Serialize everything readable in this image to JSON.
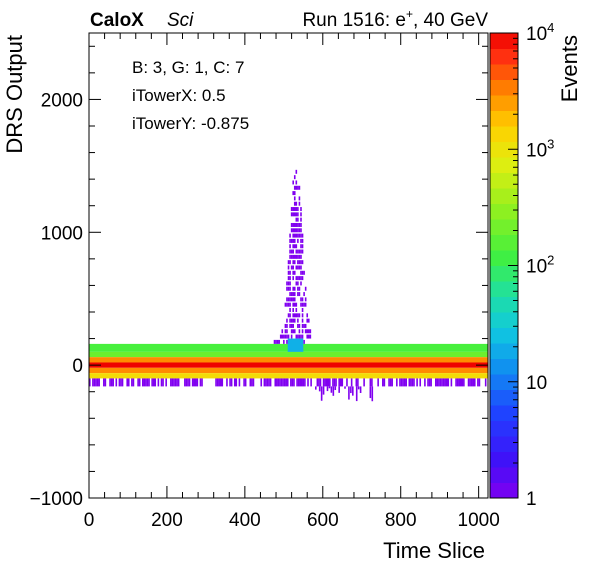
{
  "header": {
    "experiment": "CaloX",
    "detector": "Sci",
    "run_prefix": "Run 1516: e",
    "run_sup": "+",
    "run_suffix": ", 40 GeV"
  },
  "info_box": {
    "line1": "B: 3, G: 1, C: 7",
    "line2": "iTowerX: 0.5",
    "line3": "iTowerY: -0.875"
  },
  "chart_data": {
    "type": "heatmap",
    "xlabel": "Time Slice",
    "ylabel": "DRS Output",
    "zlabel": "Events",
    "xlim": [
      0,
      1024
    ],
    "ylim": [
      -1000,
      2500
    ],
    "zlim": [
      1,
      10000
    ],
    "z_log": true,
    "x_ticks": [
      0,
      200,
      400,
      600,
      800,
      1000
    ],
    "x_tick_labels": [
      "0",
      "200",
      "400",
      "600",
      "800",
      "1000"
    ],
    "y_ticks": [
      -1000,
      0,
      1000,
      2000
    ],
    "y_tick_labels": [
      "−1000",
      "0",
      "1000",
      "2000"
    ],
    "z_ticks": [
      1,
      10,
      100,
      1000,
      10000
    ],
    "z_tick_labels": [
      "1",
      "10",
      "10^2",
      "10^3",
      "10^4"
    ],
    "bands": [
      {
        "x_range": [
          0,
          1024
        ],
        "y_range": [
          100,
          160
        ],
        "events": 130
      },
      {
        "x_range": [
          0,
          1024
        ],
        "y_range": [
          60,
          100
        ],
        "events": 200
      },
      {
        "x_range": [
          0,
          1024
        ],
        "y_range": [
          20,
          60
        ],
        "events": 3000
      },
      {
        "x_range": [
          0,
          1024
        ],
        "y_range": [
          -20,
          20
        ],
        "events": 10000
      },
      {
        "x_range": [
          0,
          1024
        ],
        "y_range": [
          -60,
          -20
        ],
        "events": 3000
      },
      {
        "x_range": [
          0,
          1024
        ],
        "y_range": [
          -100,
          -60
        ],
        "events": 1200
      },
      {
        "x_range": [
          0,
          1024
        ],
        "y_range": [
          -160,
          -100
        ],
        "events": 1
      }
    ],
    "signal_peak": {
      "x_center": 530,
      "x_start": 470,
      "x_end": 570,
      "peak_value": 1520,
      "peak_events": 1,
      "core_x_range": [
        510,
        550
      ],
      "core_y_range": [
        100,
        200
      ],
      "core_events": 20
    },
    "undershoot": {
      "x_range": [
        580,
        740
      ],
      "min_value": -280,
      "events": 1
    },
    "grid": false
  }
}
